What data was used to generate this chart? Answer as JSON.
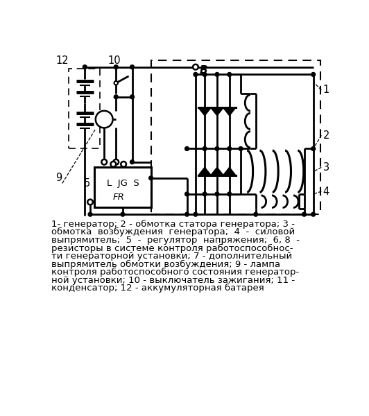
{
  "bg_color": "#ffffff",
  "caption_lines": [
    "1- генератор; 2 - обмотка статора генератора; 3 -",
    "обмотка  возбуждения  генератора;  4  -  силовой",
    "выпрямитель;  5  -  регулятор  напряжения;  6, 8  -",
    "резисторы в системе контроля работоспособнос-",
    "ти генераторной установки; 7 - дополнительный",
    "выпрямитель обмотки возбуждения; 9 - лампа",
    "контроля работоспособного состояния генератор-",
    "ной установки; 10 - выключатель зажигания; 11 -",
    "конденсатор; 12 - аккумуляторная батарея"
  ],
  "caption_fontsize": 9.5
}
